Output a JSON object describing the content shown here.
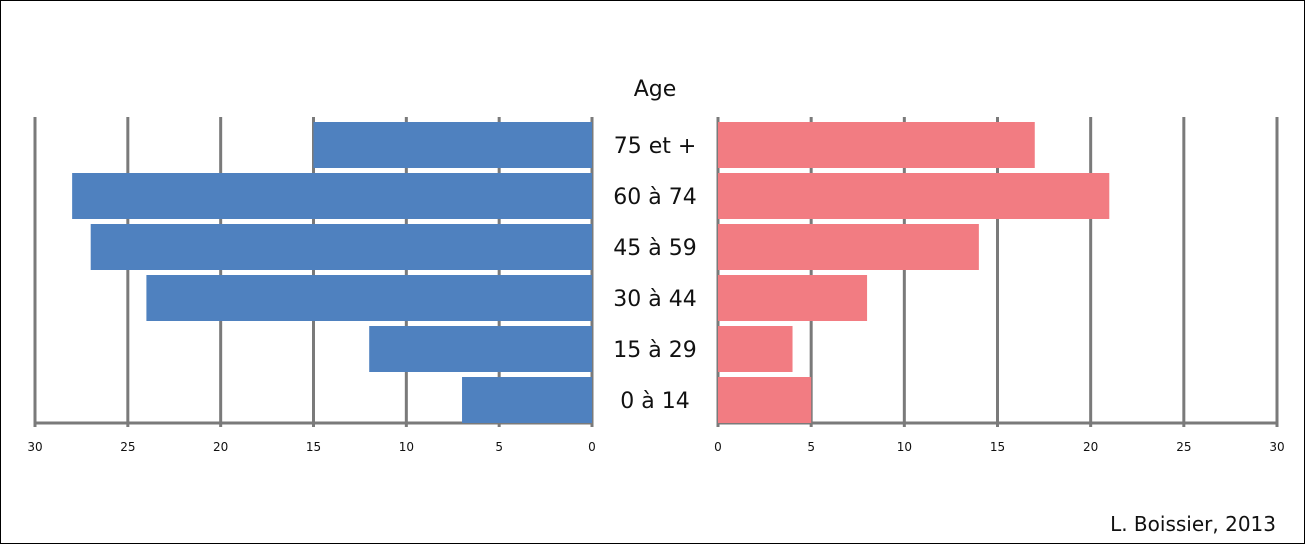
{
  "chart_data": {
    "type": "bar",
    "orientation": "horizontal",
    "layout": "population-pyramid",
    "category_axis_label": "Age",
    "categories": [
      "0 à 14",
      "15 à 29",
      "30 à 44",
      "45 à 59",
      "60 à 74",
      "75 et +"
    ],
    "series": [
      {
        "side": "left",
        "color": "#4f81bf",
        "values": [
          7,
          12,
          24,
          27,
          28,
          15
        ]
      },
      {
        "side": "right",
        "color": "#f27c82",
        "values": [
          5,
          4,
          8,
          14,
          21,
          17
        ]
      }
    ],
    "xlim": [
      0,
      30
    ],
    "ticks": [
      0,
      5,
      10,
      15,
      20,
      25,
      30
    ],
    "left_tick_labels": [
      "30",
      "25",
      "20",
      "15",
      "10",
      "5",
      "0"
    ],
    "right_tick_labels": [
      "0",
      "5",
      "10",
      "15",
      "20",
      "25",
      "30"
    ],
    "grid": true,
    "grid_color": "#7a7a7a"
  },
  "credit": "L. Boissier, 2013"
}
